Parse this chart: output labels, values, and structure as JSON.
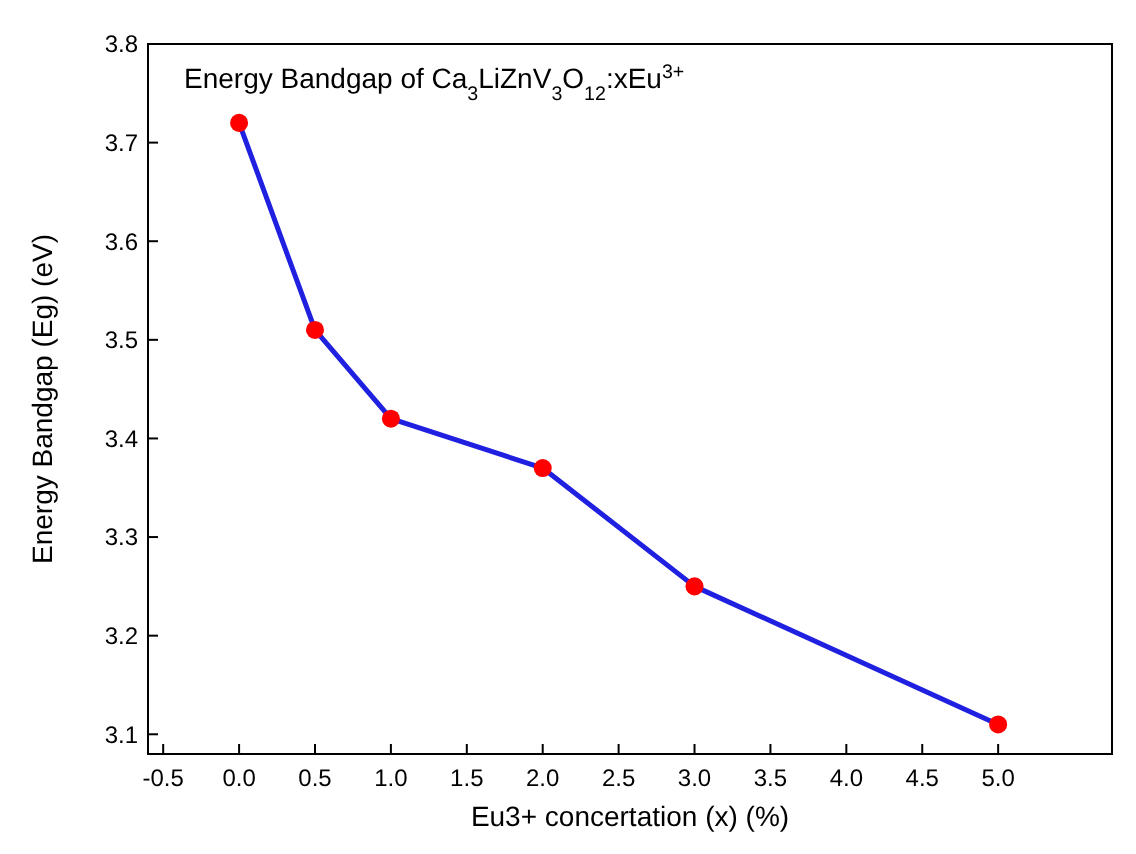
{
  "chart_data": {
    "type": "line",
    "title": "Energy Bandgap of Ca$_{3}$LiZnV$_{3}$O$_{12}$:xEu$^{3+}$",
    "xlabel": "Eu3+ concertation (x) (%)",
    "ylabel": "Energy Bandgap (Eg) (eV)",
    "x": [
      0,
      0.5,
      1,
      2,
      3,
      5
    ],
    "series": [
      {
        "color": "#2020e0",
        "marker": "none",
        "values": [
          3.72,
          3.51,
          3.42,
          3.37,
          3.25,
          3.11
        ]
      },
      {
        "type": "scatter",
        "color": "#ff0000",
        "values": [
          3.72,
          3.51,
          3.42,
          3.37,
          3.25,
          3.11
        ]
      }
    ],
    "marker": "circle",
    "line_style": "solid",
    "xlim": [
      -0.6,
      5.75
    ],
    "ylim": [
      3.08,
      3.8
    ],
    "xticks": [
      -0.5,
      {
        "value": 0,
        "label": "0.0"
      },
      0.5,
      {
        "value": 1,
        "label": "1.0"
      },
      1.5,
      {
        "value": 2,
        "label": "2.0"
      },
      2.5,
      {
        "value": 3,
        "label": "3.0"
      },
      3.5,
      {
        "value": 4,
        "label": "4.0"
      },
      4.5,
      {
        "value": 5,
        "label": "5.0"
      }
    ],
    "yticks": [
      3.1,
      3.2,
      3.3,
      3.4,
      3.5,
      3.6,
      3.7,
      3.8
    ],
    "grid": false
  }
}
